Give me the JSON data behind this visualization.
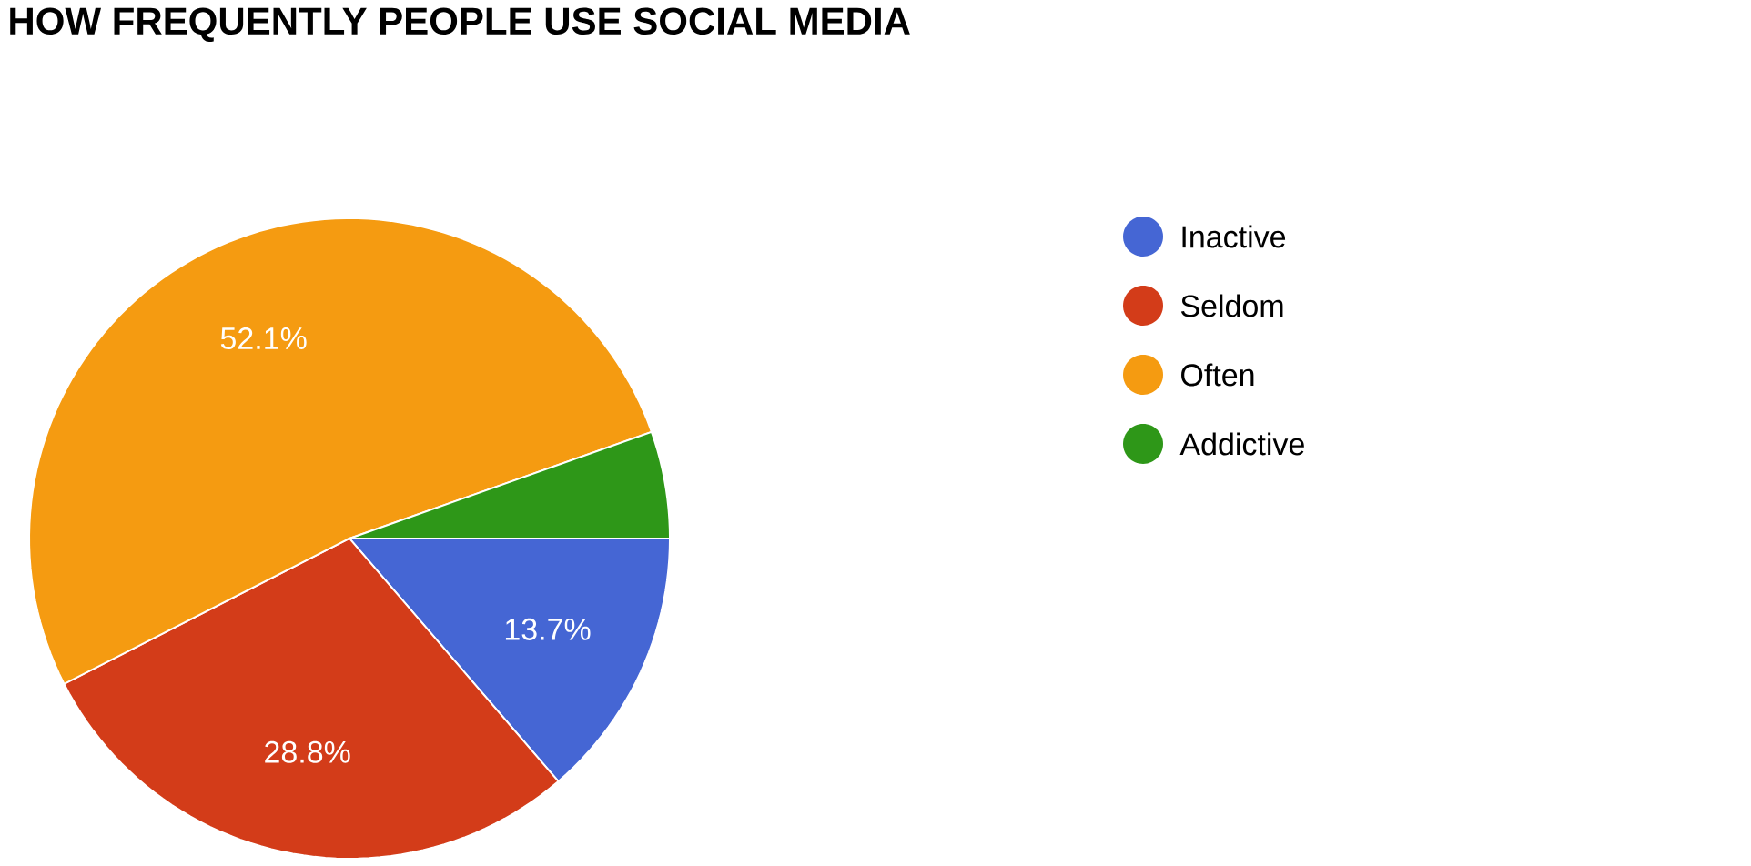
{
  "chart_data": {
    "type": "pie",
    "title": "HOW FREQUENTLY PEOPLE USE SOCIAL MEDIA",
    "categories": [
      "Inactive",
      "Seldom",
      "Often",
      "Addictive"
    ],
    "values": [
      13.7,
      28.8,
      52.1,
      5.4
    ],
    "colors": [
      "#4566d4",
      "#d33c19",
      "#f59b11",
      "#2e9718"
    ],
    "value_labels": [
      "13.7%",
      "28.8%",
      "52.1%",
      null
    ],
    "legend": "right"
  }
}
